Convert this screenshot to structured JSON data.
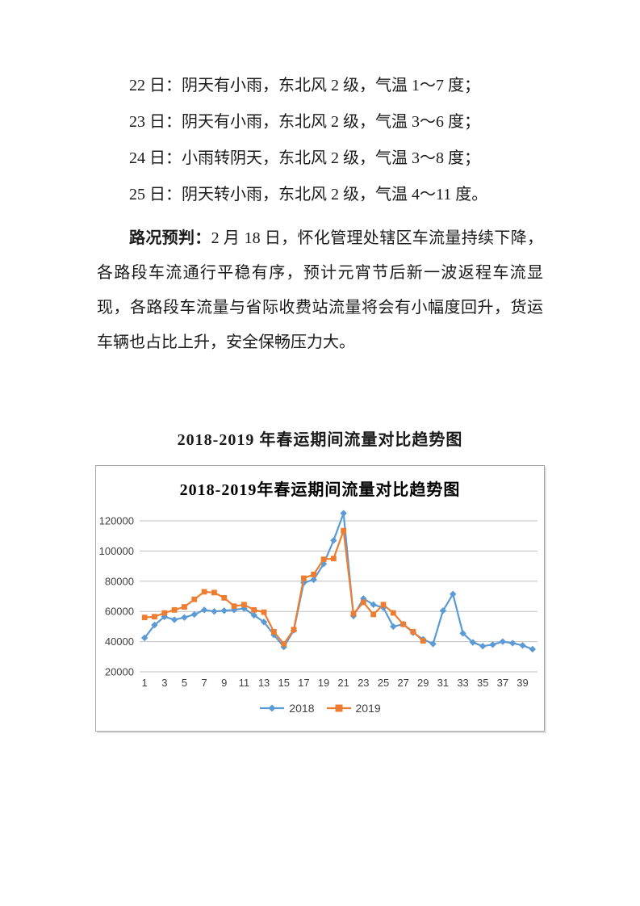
{
  "document": {
    "weather_lines": [
      "22 日：阴天有小雨，东北风 2 级，气温 1～7 度；",
      "23 日：阴天有小雨，东北风 2 级，气温 3～6 度；",
      "24 日：小雨转阴天，东北风 2 级，气温 3～8 度；",
      "25 日：阴天转小雨，东北风 2 级，气温 4～11 度。"
    ],
    "forecast_lead": "路况预判：",
    "forecast_body": "2 月 18 日，怀化管理处辖区车流量持续下降，各路段车流通行平稳有序，预计元宵节后新一波返程车流显现，各路段车流量与省际收费站流量将会有小幅度回升，货运车辆也占比上升，安全保畅压力大。",
    "chart_caption": "2018-2019 年春运期间流量对比趋势图"
  },
  "chart_data": {
    "type": "line",
    "title": "2018-2019年春运期间流量对比趋势图",
    "xlabel": "",
    "ylabel": "",
    "x_range": [
      1,
      40
    ],
    "x_ticks": [
      1,
      3,
      5,
      7,
      9,
      11,
      13,
      15,
      17,
      19,
      21,
      23,
      25,
      27,
      29,
      31,
      33,
      35,
      37,
      39
    ],
    "ylim": [
      20000,
      130000
    ],
    "y_ticks": [
      20000,
      40000,
      60000,
      80000,
      100000,
      120000
    ],
    "grid": true,
    "legend_position": "bottom",
    "colors": {
      "grid": "#bfbfbf",
      "axis_text": "#404040"
    },
    "series": [
      {
        "name": "2018",
        "color": "#5B9BD5",
        "marker": "diamond",
        "x_start": 1,
        "values": [
          42500,
          51000,
          56500,
          54500,
          56000,
          58000,
          61000,
          60000,
          60500,
          61000,
          62000,
          57500,
          53000,
          44500,
          36500,
          47500,
          79000,
          81000,
          91500,
          107000,
          125000,
          57000,
          68500,
          64500,
          62500,
          50000,
          51500,
          46000,
          41500,
          38500,
          60500,
          71500,
          45500,
          39500,
          37000,
          38000,
          40000,
          39000,
          37500,
          35000
        ]
      },
      {
        "name": "2019",
        "color": "#ED7D31",
        "marker": "square",
        "x_start": 1,
        "values": [
          56000,
          56500,
          59000,
          61000,
          63000,
          68000,
          73000,
          72500,
          69000,
          63500,
          64500,
          61000,
          59500,
          46500,
          38500,
          48000,
          82000,
          84500,
          94500,
          95000,
          113500,
          58500,
          66000,
          58000,
          64500,
          59000,
          51500,
          46500,
          40500
        ]
      }
    ]
  }
}
